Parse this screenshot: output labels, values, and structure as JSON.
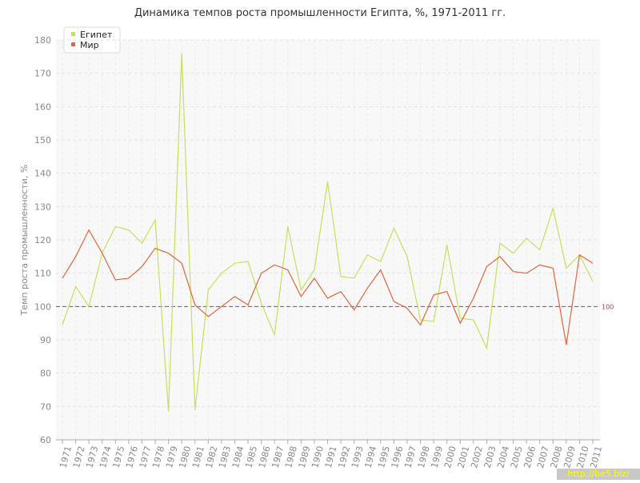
{
  "chart_data": {
    "type": "line",
    "title": "Динамика темпов роста промышленности Египта, %, 1971-2011 гг.",
    "y_label": "Темп роста промышленности, %",
    "categories": [
      "1971",
      "1972",
      "1973",
      "1974",
      "1975",
      "1976",
      "1977",
      "1978",
      "1979",
      "1980",
      "1981",
      "1982",
      "1983",
      "1984",
      "1985",
      "1986",
      "1987",
      "1988",
      "1989",
      "1990",
      "1991",
      "1992",
      "1993",
      "1994",
      "1995",
      "1996",
      "1997",
      "1998",
      "1999",
      "2000",
      "2001",
      "2002",
      "2003",
      "2004",
      "2005",
      "2006",
      "2007",
      "2008",
      "2009",
      "2010",
      "2011"
    ],
    "series": [
      {
        "name": "Египет",
        "color": "#c5e05a",
        "values": [
          94.5,
          106,
          100,
          116,
          124,
          123,
          119,
          126,
          68.5,
          176,
          69,
          105,
          110,
          113,
          113.5,
          101,
          91.5,
          124,
          105,
          111,
          137.5,
          109,
          108.5,
          115.5,
          113.5,
          123.5,
          115,
          96,
          95.5,
          118.5,
          96.5,
          96,
          87.5,
          119,
          116,
          120.5,
          117,
          129.5,
          111.5,
          115.5,
          107.5
        ]
      },
      {
        "name": "Мир",
        "color": "#e0663c",
        "values": [
          108.5,
          115,
          123,
          116,
          108,
          108.5,
          112,
          117.5,
          116,
          113,
          100.5,
          97,
          100,
          103,
          100.5,
          110,
          112.5,
          111,
          103,
          108.5,
          102.5,
          104.5,
          99,
          105.5,
          111,
          101.5,
          99.5,
          94.5,
          103.5,
          104.5,
          95,
          102.5,
          112,
          115,
          110.5,
          110,
          112.5,
          111.5,
          88.5,
          115.5,
          113
        ]
      }
    ],
    "reference_line": 100,
    "reference_color": "#a04060",
    "ylim": [
      60,
      180
    ],
    "yticks": [
      60,
      70,
      80,
      90,
      100,
      110,
      120,
      130,
      140,
      150,
      160,
      170,
      180
    ],
    "grid": true,
    "legend": "top-left",
    "watermark": "http://be5.biz/"
  }
}
